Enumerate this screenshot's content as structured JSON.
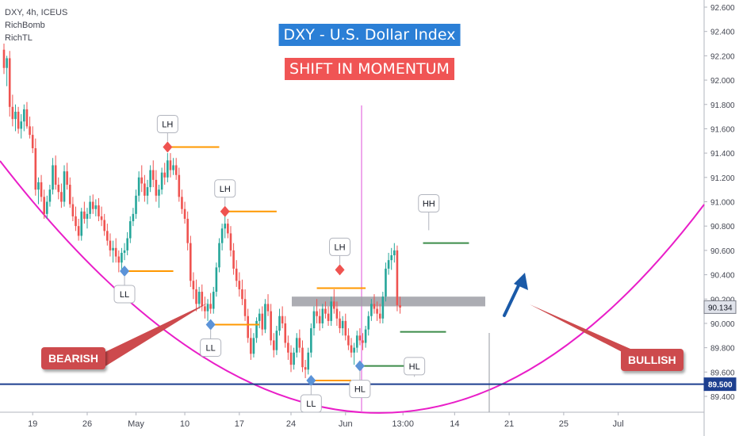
{
  "header": {
    "symbol_line": "DXY, 4h, ICEUS",
    "indicators": [
      "RichBomb",
      "RichTL"
    ]
  },
  "banner": {
    "title": "DXY - U.S. Dollar Index",
    "subtitle": "SHIFT IN MOMENTUM"
  },
  "callouts": {
    "bearish": "BEARISH",
    "bullish": "BULLISH"
  },
  "colors": {
    "up_candle": "#26a69a",
    "down_candle": "#ef5350",
    "curve": "#e91ec8",
    "support_line": "#1d3f8f",
    "orange_level": "#ff9800",
    "green_level": "#3c8c4a",
    "vertical_line": "#e46de0",
    "resistance_band": "#9e9fa6",
    "title_bg": "#2b7fd6",
    "subtitle_bg": "#f05454",
    "pill_bg": "#cd4a4d",
    "arrow": "#1a5aa8"
  },
  "chart_data": {
    "type": "candlestick",
    "ylim": [
      89.35,
      92.68
    ],
    "y_ticks": [
      "92.600",
      "92.400",
      "92.200",
      "92.000",
      "91.800",
      "91.600",
      "91.400",
      "91.200",
      "91.000",
      "90.800",
      "90.600",
      "90.400",
      "90.200",
      "90.000",
      "89.800",
      "89.600",
      "89.400"
    ],
    "y_tick_values": [
      92.6,
      92.4,
      92.2,
      92.0,
      91.8,
      91.6,
      91.4,
      91.2,
      91.0,
      90.8,
      90.6,
      90.4,
      90.2,
      90.0,
      89.8,
      89.6,
      89.4
    ],
    "x_ticks": [
      "19",
      "26",
      "May",
      "10",
      "17",
      "24",
      "Jun",
      "13:00",
      "14",
      "21",
      "25",
      "Jul"
    ],
    "x_tick_index": [
      10,
      29,
      46,
      63,
      82,
      100,
      119,
      139,
      157,
      176,
      195,
      214
    ],
    "price_labels": [
      {
        "text": "90.134",
        "value": 90.134,
        "style": "current"
      },
      {
        "text": "89.500",
        "value": 89.5,
        "style": "support"
      }
    ],
    "annotations": [
      {
        "text": "LH",
        "index": 57,
        "price": 91.45,
        "marker": "down"
      },
      {
        "text": "LH",
        "index": 77,
        "price": 90.92,
        "marker": "down"
      },
      {
        "text": "LH",
        "index": 117,
        "price": 90.44,
        "marker": "down"
      },
      {
        "text": "HH",
        "index": 148,
        "price": 90.72,
        "marker": "none"
      },
      {
        "text": "LL",
        "index": 42,
        "price": 90.43,
        "marker": "up"
      },
      {
        "text": "LL",
        "index": 72,
        "price": 89.99,
        "marker": "up"
      },
      {
        "text": "LL",
        "index": 107,
        "price": 89.53,
        "marker": "up"
      },
      {
        "text": "HL",
        "index": 124,
        "price": 89.65,
        "marker": "up"
      },
      {
        "text": "HL",
        "index": 143,
        "price": 89.6,
        "marker": "none"
      }
    ],
    "levels": [
      {
        "color": "orange",
        "price": 91.45,
        "from": 57,
        "to": 75
      },
      {
        "color": "orange",
        "price": 90.92,
        "from": 77,
        "to": 95
      },
      {
        "color": "orange",
        "price": 90.43,
        "from": 42,
        "to": 59
      },
      {
        "color": "orange",
        "price": 89.99,
        "from": 72,
        "to": 89
      },
      {
        "color": "orange",
        "price": 90.29,
        "from": 109,
        "to": 126
      },
      {
        "color": "orange",
        "price": 89.53,
        "from": 107,
        "to": 121
      },
      {
        "color": "green",
        "price": 90.66,
        "from": 146,
        "to": 162
      },
      {
        "color": "green",
        "price": 89.65,
        "from": 124,
        "to": 141
      },
      {
        "color": "green",
        "price": 89.93,
        "from": 138,
        "to": 154
      }
    ],
    "resistance_zone": {
      "low": 90.14,
      "high": 90.22
    },
    "candles": [
      [
        92.25,
        92.3,
        92.05,
        92.1
      ],
      [
        92.1,
        92.2,
        91.95,
        92.18
      ],
      [
        92.18,
        92.24,
        91.7,
        91.78
      ],
      [
        91.78,
        91.88,
        91.62,
        91.68
      ],
      [
        91.68,
        91.8,
        91.58,
        91.74
      ],
      [
        91.74,
        91.78,
        91.56,
        91.6
      ],
      [
        91.6,
        91.72,
        91.52,
        91.66
      ],
      [
        91.66,
        91.8,
        91.58,
        91.76
      ],
      [
        91.76,
        91.82,
        91.6,
        91.62
      ],
      [
        91.62,
        91.7,
        91.52,
        91.55
      ],
      [
        91.55,
        91.62,
        91.4,
        91.44
      ],
      [
        91.44,
        91.52,
        91.05,
        91.1
      ],
      [
        91.1,
        91.2,
        90.98,
        91.16
      ],
      [
        91.16,
        91.22,
        91.0,
        91.04
      ],
      [
        91.04,
        91.1,
        90.86,
        90.9
      ],
      [
        90.9,
        91.05,
        90.86,
        91.0
      ],
      [
        91.0,
        91.14,
        90.96,
        91.1
      ],
      [
        91.1,
        91.36,
        91.06,
        91.3
      ],
      [
        91.3,
        91.38,
        91.1,
        91.14
      ],
      [
        91.14,
        91.2,
        91.02,
        91.08
      ],
      [
        91.08,
        91.15,
        90.95,
        91.0
      ],
      [
        91.0,
        91.3,
        90.96,
        91.25
      ],
      [
        91.25,
        91.32,
        91.1,
        91.14
      ],
      [
        91.14,
        91.2,
        90.95,
        90.98
      ],
      [
        90.98,
        91.04,
        90.84,
        90.88
      ],
      [
        90.88,
        90.96,
        90.76,
        90.8
      ],
      [
        90.8,
        90.86,
        90.68,
        90.72
      ],
      [
        90.72,
        90.95,
        90.68,
        90.92
      ],
      [
        90.92,
        91.0,
        90.82,
        90.86
      ],
      [
        90.86,
        90.95,
        90.78,
        90.9
      ],
      [
        90.9,
        91.05,
        90.86,
        91.0
      ],
      [
        91.0,
        91.06,
        90.9,
        90.94
      ],
      [
        90.94,
        91.02,
        90.88,
        90.97
      ],
      [
        90.97,
        91.03,
        90.84,
        90.88
      ],
      [
        90.88,
        90.96,
        90.8,
        90.85
      ],
      [
        90.85,
        90.9,
        90.72,
        90.76
      ],
      [
        90.76,
        90.82,
        90.64,
        90.68
      ],
      [
        90.68,
        90.74,
        90.55,
        90.6
      ],
      [
        90.6,
        90.68,
        90.5,
        90.62
      ],
      [
        90.62,
        90.7,
        90.5,
        90.55
      ],
      [
        90.55,
        90.6,
        90.42,
        90.5
      ],
      [
        90.5,
        90.62,
        90.44,
        90.58
      ],
      [
        90.58,
        90.66,
        90.52,
        90.6
      ],
      [
        90.6,
        90.75,
        90.56,
        90.7
      ],
      [
        90.7,
        90.88,
        90.66,
        90.84
      ],
      [
        90.84,
        90.95,
        90.8,
        90.9
      ],
      [
        90.9,
        91.1,
        90.86,
        91.05
      ],
      [
        91.05,
        91.25,
        91.0,
        91.2
      ],
      [
        91.2,
        91.3,
        91.08,
        91.15
      ],
      [
        91.15,
        91.22,
        91.0,
        91.05
      ],
      [
        91.05,
        91.18,
        90.98,
        91.12
      ],
      [
        91.12,
        91.3,
        91.08,
        91.26
      ],
      [
        91.26,
        91.34,
        91.12,
        91.18
      ],
      [
        91.18,
        91.26,
        91.0,
        91.05
      ],
      [
        91.05,
        91.14,
        90.95,
        91.1
      ],
      [
        91.1,
        91.28,
        91.06,
        91.24
      ],
      [
        91.24,
        91.32,
        91.14,
        91.2
      ],
      [
        91.2,
        91.4,
        91.16,
        91.34
      ],
      [
        91.34,
        91.4,
        91.2,
        91.26
      ],
      [
        91.26,
        91.36,
        91.22,
        91.3
      ],
      [
        91.3,
        91.36,
        91.18,
        91.22
      ],
      [
        91.22,
        91.28,
        91.0,
        91.04
      ],
      [
        91.04,
        91.1,
        90.9,
        90.94
      ],
      [
        90.94,
        91.0,
        90.82,
        90.86
      ],
      [
        90.86,
        90.92,
        90.6,
        90.66
      ],
      [
        90.66,
        90.72,
        90.3,
        90.35
      ],
      [
        90.35,
        90.42,
        90.2,
        90.28
      ],
      [
        90.28,
        90.36,
        90.1,
        90.16
      ],
      [
        90.16,
        90.3,
        90.12,
        90.26
      ],
      [
        90.26,
        90.32,
        90.1,
        90.14
      ],
      [
        90.14,
        90.22,
        90.04,
        90.1
      ],
      [
        90.1,
        90.2,
        90.02,
        90.16
      ],
      [
        90.16,
        90.25,
        90.08,
        90.12
      ],
      [
        90.12,
        90.3,
        90.08,
        90.26
      ],
      [
        90.26,
        90.5,
        90.22,
        90.46
      ],
      [
        90.46,
        90.7,
        90.42,
        90.66
      ],
      [
        90.66,
        90.82,
        90.6,
        90.78
      ],
      [
        90.78,
        90.9,
        90.7,
        90.82
      ],
      [
        90.82,
        90.86,
        90.7,
        90.74
      ],
      [
        90.74,
        90.8,
        90.55,
        90.6
      ],
      [
        90.6,
        90.66,
        90.4,
        90.45
      ],
      [
        90.45,
        90.52,
        90.3,
        90.35
      ],
      [
        90.35,
        90.42,
        90.22,
        90.28
      ],
      [
        90.28,
        90.36,
        90.15,
        90.2
      ],
      [
        90.2,
        90.28,
        90.02,
        90.06
      ],
      [
        90.06,
        90.12,
        89.84,
        89.88
      ],
      [
        89.88,
        89.96,
        89.7,
        89.75
      ],
      [
        89.75,
        89.92,
        89.72,
        89.88
      ],
      [
        89.88,
        90.05,
        89.84,
        90.02
      ],
      [
        90.02,
        90.12,
        89.96,
        90.08
      ],
      [
        90.08,
        90.14,
        89.9,
        89.95
      ],
      [
        89.95,
        90.2,
        89.92,
        90.16
      ],
      [
        90.16,
        90.24,
        90.06,
        90.1
      ],
      [
        90.1,
        90.16,
        89.82,
        89.86
      ],
      [
        89.86,
        89.92,
        89.72,
        89.78
      ],
      [
        89.78,
        89.98,
        89.74,
        89.94
      ],
      [
        89.94,
        90.12,
        89.9,
        90.06
      ],
      [
        90.06,
        90.14,
        89.96,
        90.0
      ],
      [
        90.0,
        90.06,
        89.8,
        89.84
      ],
      [
        89.84,
        89.9,
        89.7,
        89.76
      ],
      [
        89.76,
        89.82,
        89.6,
        89.66
      ],
      [
        89.66,
        89.8,
        89.62,
        89.76
      ],
      [
        89.76,
        89.92,
        89.72,
        89.88
      ],
      [
        89.88,
        89.95,
        89.76,
        89.8
      ],
      [
        89.8,
        89.86,
        89.6,
        89.64
      ],
      [
        89.64,
        89.7,
        89.55,
        89.62
      ],
      [
        89.62,
        89.8,
        89.58,
        89.76
      ],
      [
        89.76,
        90.0,
        89.72,
        89.96
      ],
      [
        89.96,
        90.14,
        89.9,
        90.1
      ],
      [
        90.1,
        90.2,
        90.0,
        90.06
      ],
      [
        90.06,
        90.12,
        89.94,
        90.0
      ],
      [
        90.0,
        90.16,
        89.96,
        90.12
      ],
      [
        90.12,
        90.18,
        90.04,
        90.08
      ],
      [
        90.08,
        90.14,
        89.98,
        90.02
      ],
      [
        90.02,
        90.22,
        89.98,
        90.18
      ],
      [
        90.18,
        90.28,
        90.08,
        90.12
      ],
      [
        90.12,
        90.18,
        89.98,
        90.04
      ],
      [
        90.04,
        90.1,
        89.92,
        89.96
      ],
      [
        89.96,
        90.06,
        89.9,
        90.02
      ],
      [
        90.02,
        90.08,
        89.86,
        89.9
      ],
      [
        89.9,
        89.96,
        89.78,
        89.82
      ],
      [
        89.82,
        89.88,
        89.72,
        89.76
      ],
      [
        89.76,
        89.84,
        89.66,
        89.8
      ],
      [
        89.8,
        89.94,
        89.76,
        89.9
      ],
      [
        89.9,
        89.96,
        89.82,
        89.86
      ],
      [
        89.86,
        89.92,
        89.78,
        89.84
      ],
      [
        89.84,
        89.98,
        89.8,
        89.95
      ],
      [
        89.95,
        90.1,
        89.9,
        90.06
      ],
      [
        90.06,
        90.2,
        90.02,
        90.16
      ],
      [
        90.16,
        90.24,
        90.08,
        90.12
      ],
      [
        90.12,
        90.18,
        90.02,
        90.08
      ],
      [
        90.08,
        90.16,
        90.0,
        90.04
      ],
      [
        90.04,
        90.26,
        90.0,
        90.22
      ],
      [
        90.22,
        90.5,
        90.18,
        90.45
      ],
      [
        90.45,
        90.58,
        90.4,
        90.52
      ],
      [
        90.52,
        90.62,
        90.44,
        90.56
      ],
      [
        90.56,
        90.66,
        90.5,
        90.6
      ],
      [
        90.6,
        90.64,
        90.1,
        90.15
      ],
      [
        90.15,
        90.22,
        90.08,
        90.13
      ]
    ]
  }
}
